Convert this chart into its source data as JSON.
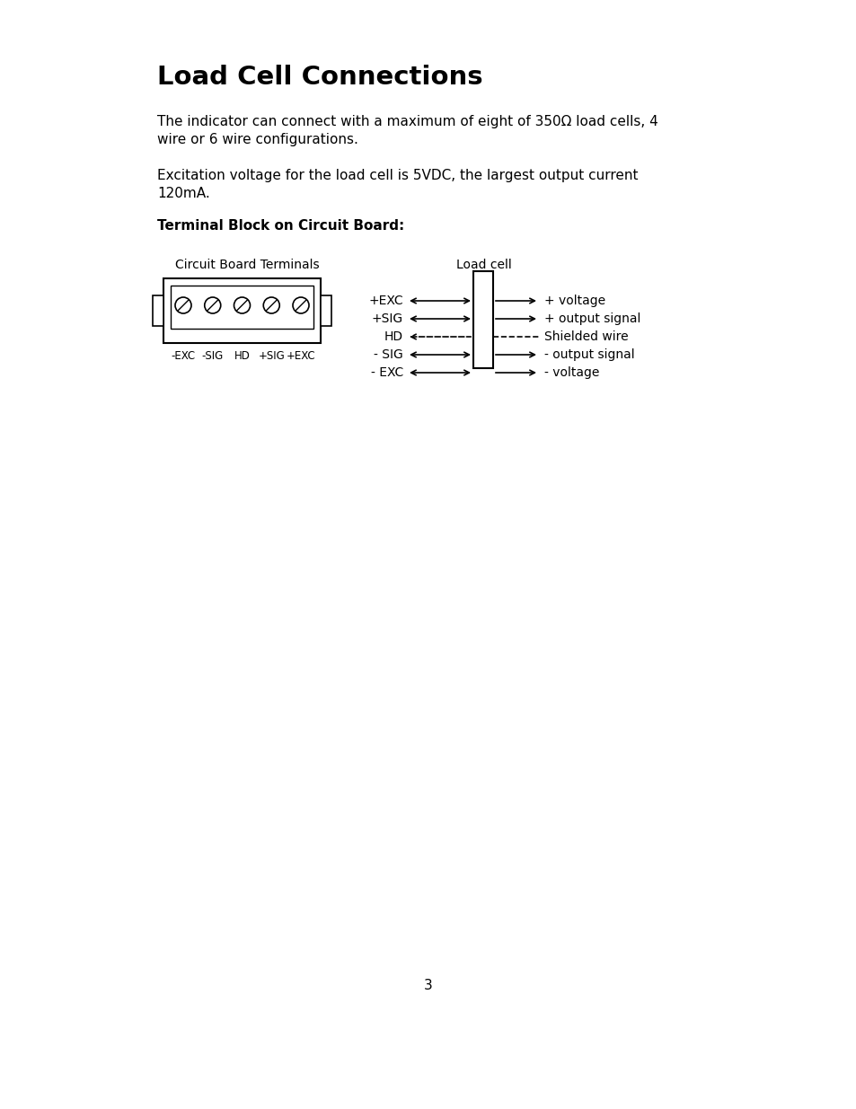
{
  "title": "Load Cell Connections",
  "para1_line1": "The indicator can connect with a maximum of eight of 350Ω load cells, 4",
  "para1_line2": "wire or 6 wire configurations.",
  "para2_line1": "Excitation voltage for the load cell is 5VDC, the largest output current",
  "para2_line2": "120mA.",
  "section_title": "Terminal Block on Circuit Board:",
  "label_circuit": "Circuit Board Terminals",
  "label_loadcell": "Load cell",
  "terminal_labels": [
    "-EXC",
    "-SIG",
    "HD",
    "+SIG",
    "+EXC"
  ],
  "connection_rows": [
    {
      "left": "+EXC",
      "right": "+ voltage",
      "dashed": false,
      "right_arrow": true
    },
    {
      "left": "+SIG",
      "right": "+ output signal",
      "dashed": false,
      "right_arrow": true
    },
    {
      "left": "HD",
      "right": "Shielded wire",
      "dashed": true,
      "right_arrow": false
    },
    {
      "left": "- SIG",
      "right": "- output signal",
      "dashed": false,
      "right_arrow": true
    },
    {
      "left": "- EXC",
      "right": "- voltage",
      "dashed": false,
      "right_arrow": true
    }
  ],
  "page_number": "3",
  "bg_color": "#ffffff",
  "text_color": "#000000"
}
